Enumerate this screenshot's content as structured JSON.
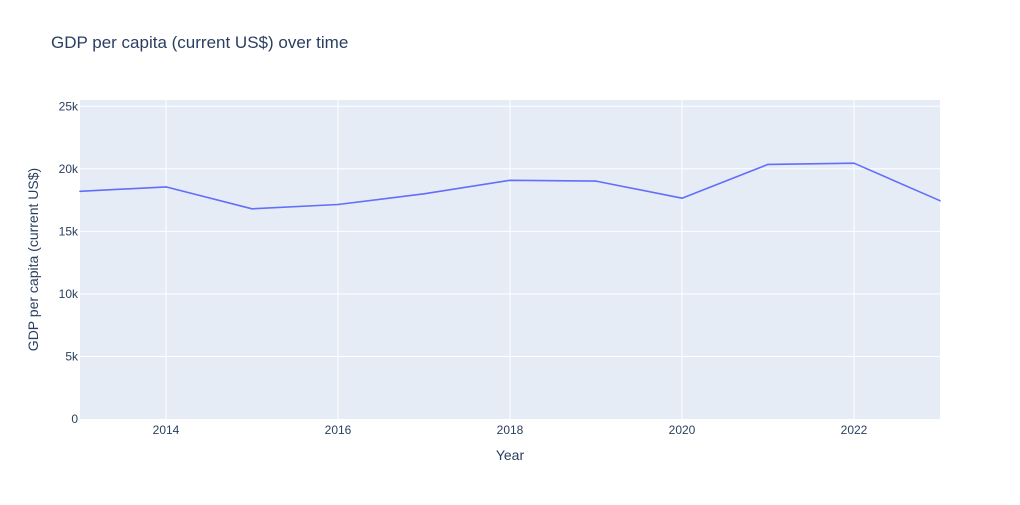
{
  "chart_data": {
    "type": "line",
    "title": "GDP per capita (current US$) over time",
    "xlabel": "Year",
    "ylabel": "GDP per capita (current US$)",
    "xlim": [
      2013,
      2023
    ],
    "ylim": [
      0,
      25500
    ],
    "x_ticks": [
      2014,
      2016,
      2018,
      2020,
      2022
    ],
    "y_ticks": [
      0,
      5000,
      10000,
      15000,
      20000,
      25000
    ],
    "y_tick_labels": [
      "0",
      "5k",
      "10k",
      "15k",
      "20k",
      "25k"
    ],
    "grid": true,
    "legend": "none",
    "colors": {
      "line": "#636efa",
      "plot_bg": "#e5ecf6",
      "grid": "#ffffff",
      "text": "#2a3f5f"
    },
    "series": [
      {
        "x": [
          2013,
          2014,
          2015,
          2016,
          2017,
          2018,
          2019,
          2020,
          2021,
          2022,
          2023
        ],
        "values": [
          18200,
          18550,
          16800,
          17150,
          18000,
          19080,
          19020,
          17650,
          20350,
          20450,
          17450
        ]
      }
    ]
  }
}
